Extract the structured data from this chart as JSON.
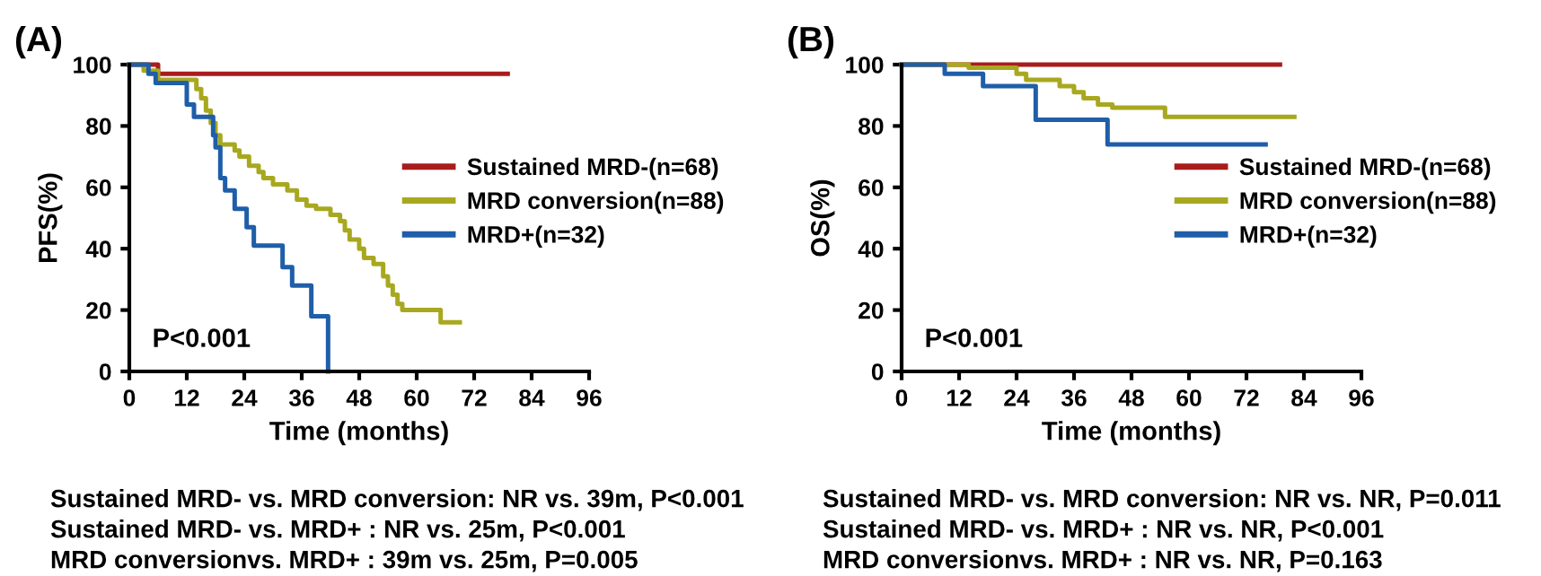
{
  "chart_data": [
    {
      "type": "step",
      "title": "(A)",
      "xlabel": "Time (months)",
      "ylabel": "PFS(%)",
      "xlim": [
        0,
        96
      ],
      "ylim": [
        0,
        100
      ],
      "xticks": [
        0,
        12,
        24,
        36,
        48,
        60,
        72,
        84,
        96
      ],
      "yticks": [
        0,
        20,
        40,
        60,
        80,
        100
      ],
      "grid": false,
      "legend": "right",
      "series": [
        {
          "name": "Sustained MRD-(n=68)",
          "color": "#a81c1c",
          "x": [
            0,
            6,
            79
          ],
          "values": [
            100,
            97,
            97
          ]
        },
        {
          "name": "MRD conversion(n=88)",
          "color": "#a8a820",
          "x": [
            0,
            3,
            6,
            14,
            15,
            16,
            17,
            18,
            19,
            22,
            23,
            25,
            27,
            28,
            30,
            33,
            35,
            37,
            39,
            42,
            44,
            45,
            46,
            48,
            49,
            51,
            53,
            54,
            55,
            56,
            57,
            65,
            69
          ],
          "values": [
            100,
            98,
            95,
            92,
            89,
            85,
            81,
            77,
            74,
            72,
            70,
            67,
            65,
            63,
            61,
            59,
            56,
            54,
            53,
            51,
            49,
            46,
            43,
            40,
            37,
            35,
            31,
            28,
            25,
            22,
            20,
            16,
            16
          ]
        },
        {
          "name": "MRD+(n=32)",
          "color": "#1f5ea8",
          "x": [
            0,
            4,
            5.5,
            12,
            13.5,
            17.5,
            18,
            19,
            20,
            22,
            24.5,
            26,
            32,
            34,
            38,
            41.5
          ],
          "values": [
            100,
            97,
            94,
            87,
            83,
            77,
            73,
            63,
            59,
            53,
            47,
            41,
            34,
            28,
            18,
            0
          ]
        }
      ],
      "annotations": [
        "P<0.001",
        "Sustained MRD- vs. MRD conversion: NR vs. 39m, P<0.001",
        "Sustained MRD- vs. MRD+ : NR vs. 25m, P<0.001",
        "MRD conversionvs. MRD+ : 39m vs. 25m, P=0.005"
      ]
    },
    {
      "type": "step",
      "title": "(B)",
      "xlabel": "Time (months)",
      "ylabel": "OS(%)",
      "xlim": [
        0,
        96
      ],
      "ylim": [
        0,
        100
      ],
      "xticks": [
        0,
        12,
        24,
        36,
        48,
        60,
        72,
        84,
        96
      ],
      "yticks": [
        0,
        20,
        40,
        60,
        80,
        100
      ],
      "grid": false,
      "legend": "right",
      "series": [
        {
          "name": "Sustained MRD-(n=68)",
          "color": "#a81c1c",
          "x": [
            0,
            79
          ],
          "values": [
            100,
            100
          ]
        },
        {
          "name": "MRD conversion(n=88)",
          "color": "#a8a820",
          "x": [
            0,
            14,
            24,
            26,
            33,
            36,
            38,
            41,
            44,
            55,
            82
          ],
          "values": [
            100,
            99,
            97,
            95,
            93,
            91,
            89,
            87,
            86,
            83,
            83
          ]
        },
        {
          "name": "MRD+(n=32)",
          "color": "#1f5ea8",
          "x": [
            0,
            9,
            17,
            28,
            43,
            76
          ],
          "values": [
            100,
            97,
            93,
            82,
            74,
            74
          ]
        }
      ],
      "annotations": [
        "P<0.001",
        "Sustained MRD- vs. MRD conversion: NR vs. NR, P=0.011",
        "Sustained MRD- vs. MRD+ : NR vs. NR, P<0.001",
        "MRD conversionvs. MRD+ : NR vs. NR, P=0.163"
      ]
    }
  ]
}
